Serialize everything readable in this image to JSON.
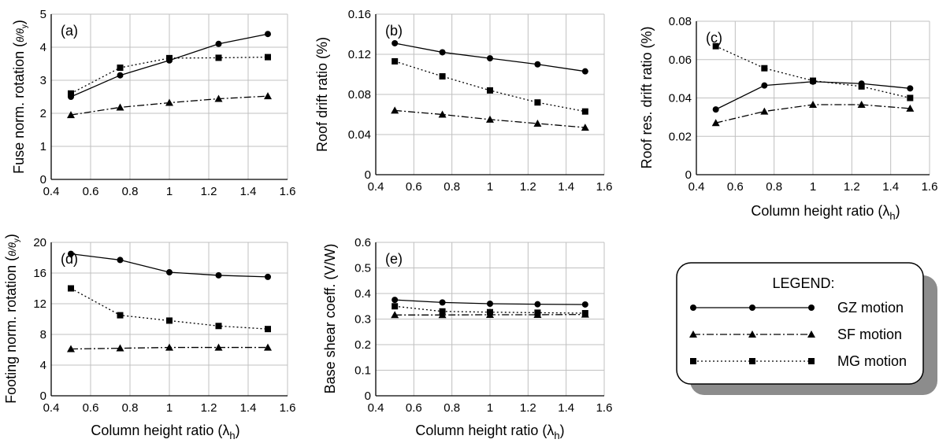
{
  "legend": {
    "title": "LEGEND:",
    "entries": [
      "GZ motion",
      "SF motion",
      "MG motion"
    ]
  },
  "xlabel_main": "Column height ratio (",
  "xlabel_sym": "λ",
  "xlabel_sub": "h",
  "xlabel_close": ")",
  "chart_data": [
    {
      "type": "line",
      "panel": "(a)",
      "ylabel": "Fuse norm. rotation (",
      "ylabel_sym": "θ/θ",
      "ylabel_sub": "y",
      "ylabel_close": ")",
      "xlim": [
        0.4,
        1.6
      ],
      "ylim": [
        0,
        5
      ],
      "xticks": [
        "0.4",
        "0.6",
        "0.8",
        "1",
        "1.2",
        "1.4",
        "1.6"
      ],
      "yticks": [
        "0",
        "1",
        "2",
        "3",
        "4",
        "5"
      ],
      "x": [
        0.5,
        0.75,
        1.0,
        1.25,
        1.5
      ],
      "series": [
        {
          "name": "GZ motion",
          "marker": "circle",
          "dash": "solid",
          "values": [
            2.5,
            3.15,
            3.6,
            4.1,
            4.4
          ]
        },
        {
          "name": "SF motion",
          "marker": "triangle",
          "dash": "dashdot",
          "values": [
            1.95,
            2.18,
            2.32,
            2.44,
            2.52
          ]
        },
        {
          "name": "MG motion",
          "marker": "square",
          "dash": "dotted",
          "values": [
            2.6,
            3.38,
            3.67,
            3.68,
            3.7
          ]
        }
      ]
    },
    {
      "type": "line",
      "panel": "(b)",
      "ylabel": "Roof drift ratio (%)",
      "ylabel_sym": "",
      "ylabel_sub": "",
      "ylabel_close": "",
      "xlim": [
        0.4,
        1.6
      ],
      "ylim": [
        0,
        0.16
      ],
      "xticks": [
        "0.4",
        "0.6",
        "0.8",
        "1",
        "1.2",
        "1.4",
        "1.6"
      ],
      "yticks": [
        "0",
        "0.04",
        "0.08",
        "0.12",
        "0.16"
      ],
      "x": [
        0.5,
        0.75,
        1.0,
        1.25,
        1.5
      ],
      "series": [
        {
          "name": "GZ motion",
          "marker": "circle",
          "dash": "solid",
          "values": [
            0.131,
            0.122,
            0.116,
            0.11,
            0.103
          ]
        },
        {
          "name": "SF motion",
          "marker": "triangle",
          "dash": "dashdot",
          "values": [
            0.064,
            0.06,
            0.055,
            0.051,
            0.047
          ]
        },
        {
          "name": "MG motion",
          "marker": "square",
          "dash": "dotted",
          "values": [
            0.113,
            0.098,
            0.084,
            0.072,
            0.063
          ]
        }
      ]
    },
    {
      "type": "line",
      "panel": "(c)",
      "ylabel": "Roof res. drift ratio (%)",
      "ylabel_sym": "",
      "ylabel_sub": "",
      "ylabel_close": "",
      "xlim": [
        0.4,
        1.6
      ],
      "ylim": [
        0,
        0.08
      ],
      "xticks": [
        "0.4",
        "0.6",
        "0.8",
        "1",
        "1.2",
        "1.4",
        "1.6"
      ],
      "yticks": [
        "0",
        "0.02",
        "0.04",
        "0.06",
        "0.08"
      ],
      "x": [
        0.5,
        0.75,
        1.0,
        1.25,
        1.5
      ],
      "series": [
        {
          "name": "GZ motion",
          "marker": "circle",
          "dash": "solid",
          "values": [
            0.034,
            0.0465,
            0.0485,
            0.0475,
            0.045
          ]
        },
        {
          "name": "SF motion",
          "marker": "triangle",
          "dash": "dashdot",
          "values": [
            0.027,
            0.033,
            0.0365,
            0.0365,
            0.0345
          ]
        },
        {
          "name": "MG motion",
          "marker": "square",
          "dash": "dotted",
          "values": [
            0.067,
            0.0555,
            0.049,
            0.046,
            0.04
          ]
        }
      ]
    },
    {
      "type": "line",
      "panel": "(d)",
      "ylabel": "Footing norm. rotation (",
      "ylabel_sym": "θ/θ",
      "ylabel_sub": "y",
      "ylabel_close": ")",
      "xlim": [
        0.4,
        1.6
      ],
      "ylim": [
        0,
        20
      ],
      "xticks": [
        "0.4",
        "0.6",
        "0.8",
        "1",
        "1.2",
        "1.4",
        "1.6"
      ],
      "yticks": [
        "0",
        "4",
        "8",
        "12",
        "16",
        "20"
      ],
      "x": [
        0.5,
        0.75,
        1.0,
        1.25,
        1.5
      ],
      "series": [
        {
          "name": "GZ motion",
          "marker": "circle",
          "dash": "solid",
          "values": [
            18.5,
            17.7,
            16.1,
            15.7,
            15.5
          ]
        },
        {
          "name": "SF motion",
          "marker": "triangle",
          "dash": "dashdot",
          "values": [
            6.1,
            6.2,
            6.3,
            6.3,
            6.3
          ]
        },
        {
          "name": "MG motion",
          "marker": "square",
          "dash": "dotted",
          "values": [
            14.0,
            10.5,
            9.8,
            9.1,
            8.7
          ]
        }
      ]
    },
    {
      "type": "line",
      "panel": "(e)",
      "ylabel": "Base shear coeff. (V/W)",
      "ylabel_sym": "",
      "ylabel_sub": "",
      "ylabel_close": "",
      "xlim": [
        0.4,
        1.6
      ],
      "ylim": [
        0,
        0.6
      ],
      "xticks": [
        "0.4",
        "0.6",
        "0.8",
        "1",
        "1.2",
        "1.4",
        "1.6"
      ],
      "yticks": [
        "0",
        "0.1",
        "0.2",
        "0.3",
        "0.4",
        "0.5",
        "0.6"
      ],
      "x": [
        0.5,
        0.75,
        1.0,
        1.25,
        1.5
      ],
      "series": [
        {
          "name": "GZ motion",
          "marker": "circle",
          "dash": "solid",
          "values": [
            0.375,
            0.365,
            0.36,
            0.358,
            0.357
          ]
        },
        {
          "name": "SF motion",
          "marker": "triangle",
          "dash": "dashdot",
          "values": [
            0.316,
            0.316,
            0.317,
            0.317,
            0.318
          ]
        },
        {
          "name": "MG motion",
          "marker": "square",
          "dash": "dotted",
          "values": [
            0.35,
            0.33,
            0.327,
            0.325,
            0.323
          ]
        }
      ]
    }
  ]
}
